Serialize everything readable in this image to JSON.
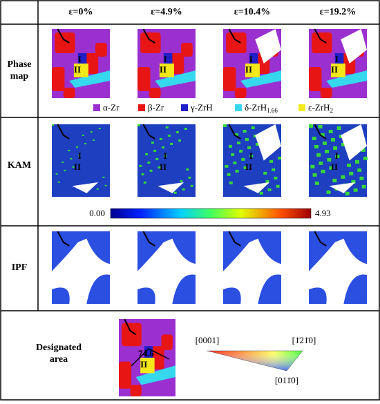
{
  "columns": [
    "ε=0%",
    "ε=4.9%",
    "ε=10.4%",
    "ε=19.2%"
  ],
  "rows": [
    "Phase map",
    "KAM",
    "IPF",
    "Designated area"
  ],
  "phase_legend": [
    {
      "base": "α-Zr",
      "sub": null
    },
    {
      "base": "β-Zr",
      "sub": null
    },
    {
      "base": "γ-ZrH",
      "sub": null
    },
    {
      "base": "δ-ZrH",
      "sub": "1.66"
    },
    {
      "base": "ε-ZrH",
      "sub": "2"
    }
  ],
  "kam_scale": {
    "min": "0.00",
    "max": "4.93"
  },
  "grain_labels": [
    "I",
    "II"
  ],
  "angle": "74.6",
  "ipf_legend": [
    "[0001]",
    "[1̄21̄0]",
    "[011̄0]"
  ]
}
